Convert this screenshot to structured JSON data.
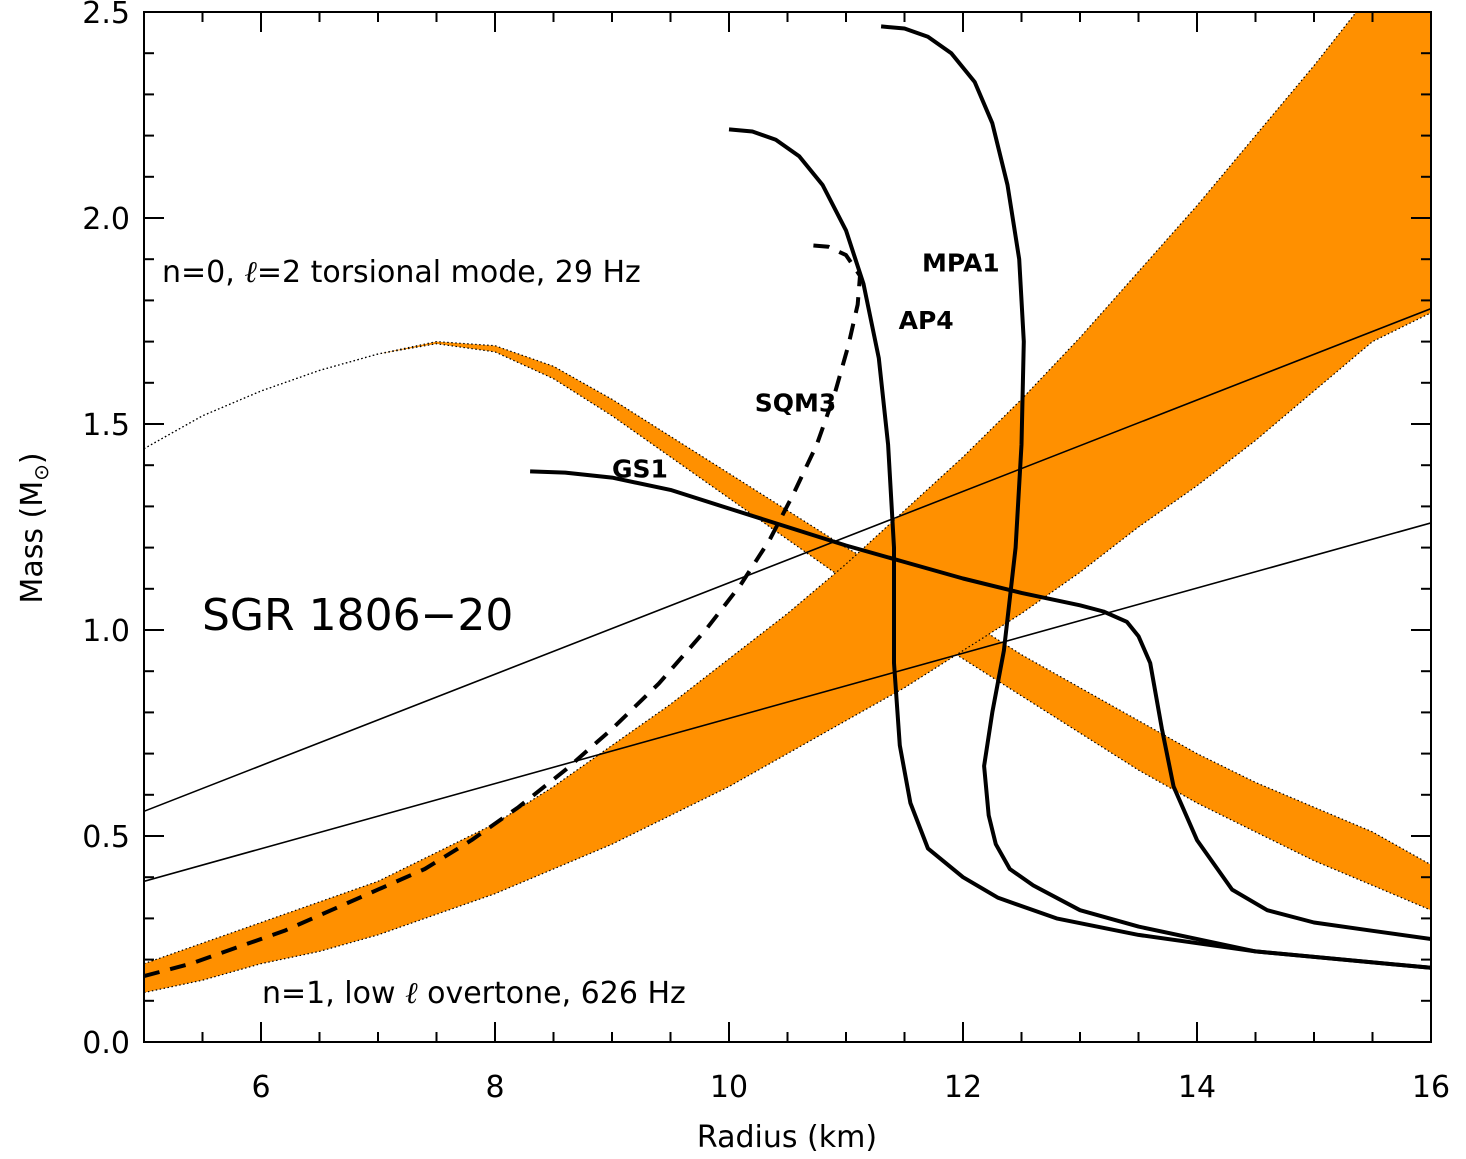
{
  "chart_data": {
    "type": "line",
    "xlabel": "Radius (km)",
    "ylabel_main": "Mass (M",
    "ylabel_sun": "⊙",
    "ylabel_close": ")",
    "xlim": [
      5,
      16
    ],
    "ylim": [
      0.0,
      2.5
    ],
    "x_ticks": [
      6,
      8,
      10,
      12,
      14,
      16
    ],
    "y_ticks": [
      0.0,
      0.5,
      1.0,
      1.5,
      2.0,
      2.5
    ],
    "x_tick_labels": [
      "6",
      "8",
      "10",
      "12",
      "14",
      "16"
    ],
    "y_tick_labels": [
      "0.0",
      "0.5",
      "1.0",
      "1.5",
      "2.0",
      "2.5"
    ],
    "grid": false,
    "band_color": "#FF9000",
    "annotations": {
      "torsional": {
        "pre": "n=0, ",
        "ell": "ℓ",
        "post": "=2 torsional mode, 29 Hz"
      },
      "overtone": {
        "pre": "n=1, low ",
        "ell": "ℓ",
        "post": " overtone, 626 Hz"
      },
      "source": "SGR 1806−20"
    },
    "bands": [
      {
        "id": "torsional-band",
        "upper": [
          [
            5.0,
            1.44
          ],
          [
            5.5,
            1.52
          ],
          [
            6.0,
            1.58
          ],
          [
            6.5,
            1.63
          ],
          [
            7.0,
            1.67
          ],
          [
            7.5,
            1.7
          ],
          [
            8.0,
            1.69
          ],
          [
            8.5,
            1.64
          ],
          [
            9.0,
            1.56
          ],
          [
            9.5,
            1.47
          ],
          [
            10.0,
            1.38
          ],
          [
            10.5,
            1.29
          ],
          [
            11.0,
            1.2
          ],
          [
            11.5,
            1.12
          ],
          [
            12.0,
            1.03
          ],
          [
            12.5,
            0.94
          ],
          [
            13.0,
            0.86
          ],
          [
            13.5,
            0.78
          ],
          [
            14.0,
            0.7
          ],
          [
            14.5,
            0.63
          ],
          [
            15.0,
            0.57
          ],
          [
            15.5,
            0.51
          ],
          [
            16.0,
            0.43
          ]
        ],
        "lower": [
          [
            5.0,
            1.44
          ],
          [
            5.5,
            1.52
          ],
          [
            6.0,
            1.58
          ],
          [
            6.5,
            1.63
          ],
          [
            7.0,
            1.67
          ],
          [
            7.5,
            1.695
          ],
          [
            8.0,
            1.675
          ],
          [
            8.5,
            1.61
          ],
          [
            9.0,
            1.52
          ],
          [
            9.5,
            1.42
          ],
          [
            10.0,
            1.32
          ],
          [
            10.5,
            1.22
          ],
          [
            11.0,
            1.12
          ],
          [
            11.5,
            1.02
          ],
          [
            12.0,
            0.93
          ],
          [
            12.5,
            0.84
          ],
          [
            13.0,
            0.75
          ],
          [
            13.5,
            0.66
          ],
          [
            14.0,
            0.58
          ],
          [
            14.5,
            0.51
          ],
          [
            15.0,
            0.44
          ],
          [
            15.5,
            0.38
          ],
          [
            16.0,
            0.32
          ]
        ]
      },
      {
        "id": "overtone-band",
        "upper": [
          [
            5.0,
            0.19
          ],
          [
            5.5,
            0.24
          ],
          [
            6.0,
            0.29
          ],
          [
            6.5,
            0.34
          ],
          [
            7.0,
            0.39
          ],
          [
            7.5,
            0.46
          ],
          [
            8.0,
            0.53
          ],
          [
            8.5,
            0.62
          ],
          [
            9.0,
            0.72
          ],
          [
            9.5,
            0.82
          ],
          [
            10.0,
            0.93
          ],
          [
            10.5,
            1.04
          ],
          [
            11.0,
            1.16
          ],
          [
            11.5,
            1.29
          ],
          [
            12.0,
            1.42
          ],
          [
            12.5,
            1.56
          ],
          [
            13.0,
            1.71
          ],
          [
            13.5,
            1.87
          ],
          [
            14.0,
            2.03
          ],
          [
            14.5,
            2.2
          ],
          [
            15.0,
            2.37
          ],
          [
            15.5,
            2.55
          ],
          [
            16.0,
            2.6
          ]
        ],
        "lower": [
          [
            5.0,
            0.12
          ],
          [
            5.5,
            0.15
          ],
          [
            6.0,
            0.19
          ],
          [
            6.5,
            0.22
          ],
          [
            7.0,
            0.26
          ],
          [
            7.5,
            0.31
          ],
          [
            8.0,
            0.36
          ],
          [
            8.5,
            0.42
          ],
          [
            9.0,
            0.48
          ],
          [
            9.5,
            0.55
          ],
          [
            10.0,
            0.62
          ],
          [
            10.5,
            0.7
          ],
          [
            11.0,
            0.78
          ],
          [
            11.5,
            0.86
          ],
          [
            12.0,
            0.95
          ],
          [
            12.5,
            1.04
          ],
          [
            13.0,
            1.14
          ],
          [
            13.5,
            1.25
          ],
          [
            14.0,
            1.35
          ],
          [
            14.5,
            1.46
          ],
          [
            15.0,
            1.58
          ],
          [
            15.5,
            1.7
          ],
          [
            16.0,
            1.77
          ]
        ]
      }
    ],
    "lines": [
      {
        "id": "straight-line-upper",
        "points": [
          [
            5.0,
            0.56
          ],
          [
            16.0,
            1.78
          ]
        ]
      },
      {
        "id": "straight-line-lower",
        "points": [
          [
            5.0,
            0.39
          ],
          [
            16.0,
            1.26
          ]
        ]
      }
    ],
    "series": [
      {
        "name": "GS1",
        "dashed": false,
        "label_at": [
          9.0,
          1.37
        ],
        "points": [
          [
            8.3,
            1.385
          ],
          [
            8.6,
            1.382
          ],
          [
            9.0,
            1.37
          ],
          [
            9.5,
            1.34
          ],
          [
            10.0,
            1.295
          ],
          [
            10.5,
            1.25
          ],
          [
            11.0,
            1.205
          ],
          [
            11.5,
            1.165
          ],
          [
            12.0,
            1.125
          ],
          [
            12.5,
            1.09
          ],
          [
            13.0,
            1.06
          ],
          [
            13.2,
            1.045
          ],
          [
            13.4,
            1.02
          ],
          [
            13.5,
            0.985
          ],
          [
            13.6,
            0.92
          ],
          [
            13.7,
            0.76
          ],
          [
            13.8,
            0.62
          ],
          [
            14.0,
            0.49
          ],
          [
            14.3,
            0.37
          ],
          [
            14.6,
            0.32
          ],
          [
            15.0,
            0.29
          ],
          [
            15.5,
            0.27
          ],
          [
            16.0,
            0.25
          ]
        ]
      },
      {
        "name": "SQM3",
        "dashed": true,
        "label_at": [
          10.22,
          1.53
        ],
        "points": [
          [
            5.0,
            0.16
          ],
          [
            5.4,
            0.19
          ],
          [
            5.8,
            0.23
          ],
          [
            6.2,
            0.27
          ],
          [
            6.6,
            0.32
          ],
          [
            7.0,
            0.37
          ],
          [
            7.4,
            0.42
          ],
          [
            7.8,
            0.49
          ],
          [
            8.2,
            0.57
          ],
          [
            8.6,
            0.66
          ],
          [
            9.0,
            0.76
          ],
          [
            9.4,
            0.87
          ],
          [
            9.8,
            1.0
          ],
          [
            10.1,
            1.11
          ],
          [
            10.35,
            1.22
          ],
          [
            10.55,
            1.33
          ],
          [
            10.75,
            1.45
          ],
          [
            10.9,
            1.57
          ],
          [
            11.02,
            1.69
          ],
          [
            11.1,
            1.79
          ],
          [
            11.12,
            1.86
          ],
          [
            11.0,
            1.91
          ],
          [
            10.85,
            1.93
          ],
          [
            10.65,
            1.935
          ]
        ]
      },
      {
        "name": "AP4",
        "dashed": false,
        "label_at": [
          11.45,
          1.73
        ],
        "points": [
          [
            10.0,
            2.215
          ],
          [
            10.2,
            2.21
          ],
          [
            10.4,
            2.19
          ],
          [
            10.6,
            2.15
          ],
          [
            10.8,
            2.08
          ],
          [
            11.0,
            1.97
          ],
          [
            11.15,
            1.84
          ],
          [
            11.28,
            1.66
          ],
          [
            11.36,
            1.45
          ],
          [
            11.41,
            1.2
          ],
          [
            11.41,
            0.92
          ],
          [
            11.46,
            0.72
          ],
          [
            11.55,
            0.58
          ],
          [
            11.7,
            0.47
          ],
          [
            12.0,
            0.4
          ],
          [
            12.3,
            0.35
          ],
          [
            12.8,
            0.3
          ],
          [
            13.5,
            0.26
          ],
          [
            14.5,
            0.22
          ],
          [
            16.0,
            0.18
          ]
        ]
      },
      {
        "name": "MPA1",
        "dashed": false,
        "label_at": [
          11.65,
          1.87
        ],
        "points": [
          [
            11.3,
            2.465
          ],
          [
            11.5,
            2.46
          ],
          [
            11.7,
            2.44
          ],
          [
            11.9,
            2.4
          ],
          [
            12.1,
            2.33
          ],
          [
            12.25,
            2.23
          ],
          [
            12.38,
            2.08
          ],
          [
            12.48,
            1.9
          ],
          [
            12.52,
            1.7
          ],
          [
            12.5,
            1.45
          ],
          [
            12.45,
            1.2
          ],
          [
            12.35,
            0.95
          ],
          [
            12.25,
            0.8
          ],
          [
            12.18,
            0.67
          ],
          [
            12.22,
            0.55
          ],
          [
            12.28,
            0.48
          ],
          [
            12.4,
            0.42
          ],
          [
            12.6,
            0.38
          ],
          [
            13.0,
            0.32
          ],
          [
            13.5,
            0.28
          ],
          [
            14.5,
            0.22
          ],
          [
            16.0,
            0.18
          ]
        ]
      }
    ]
  }
}
